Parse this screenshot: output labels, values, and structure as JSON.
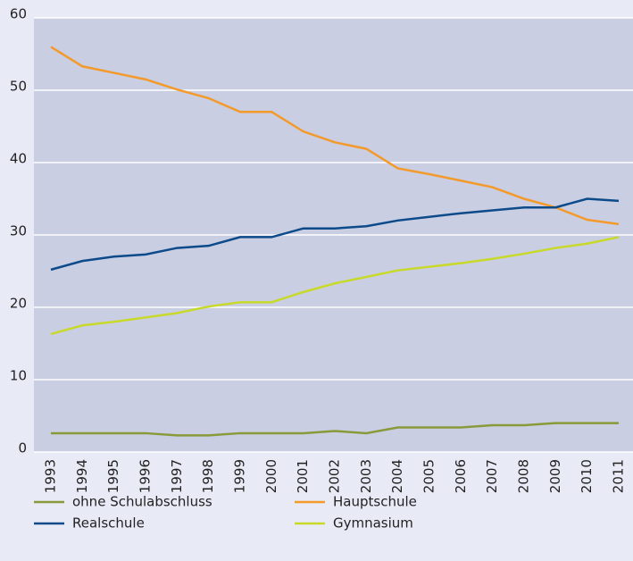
{
  "chart_data": {
    "type": "line",
    "x": [
      "1993",
      "1994",
      "1995",
      "1996",
      "1997",
      "1998",
      "1999",
      "2000",
      "2001",
      "2002",
      "2003",
      "2004",
      "2005",
      "2006",
      "2007",
      "2008",
      "2009",
      "2010",
      "2011"
    ],
    "series": [
      {
        "name": "ohne Schulabschluss",
        "color": "#8a9a3a",
        "values": [
          2.6,
          2.6,
          2.6,
          2.6,
          2.3,
          2.3,
          2.6,
          2.6,
          2.6,
          2.9,
          2.6,
          3.4,
          3.4,
          3.4,
          3.7,
          3.7,
          4,
          4,
          4
        ]
      },
      {
        "name": "Hauptschule",
        "color": "#f39a2b",
        "values": [
          56,
          53.3,
          52.4,
          51.5,
          50.1,
          48.9,
          47,
          47,
          44.3,
          42.8,
          41.9,
          39.2,
          38.4,
          37.5,
          36.6,
          35,
          33.8,
          32.1,
          31.5
        ]
      },
      {
        "name": "Realschule",
        "color": "#0d4a8a",
        "values": [
          25.2,
          26.4,
          27,
          27.3,
          28.2,
          28.5,
          29.7,
          29.7,
          30.9,
          30.9,
          31.2,
          32,
          32.5,
          33,
          33.4,
          33.8,
          33.8,
          35,
          34.7
        ]
      },
      {
        "name": "Gymnasium",
        "color": "#c8d92a",
        "values": [
          16.3,
          17.5,
          18,
          18.6,
          19.2,
          20.1,
          20.7,
          20.7,
          22.1,
          23.3,
          24.2,
          25.1,
          25.6,
          26.1,
          26.7,
          27.4,
          28.2,
          28.8,
          29.7
        ]
      }
    ],
    "ylim": [
      0,
      60
    ],
    "yticks": [
      0,
      10,
      20,
      30,
      40,
      50,
      60
    ],
    "grid": true,
    "legend": "bottom"
  }
}
